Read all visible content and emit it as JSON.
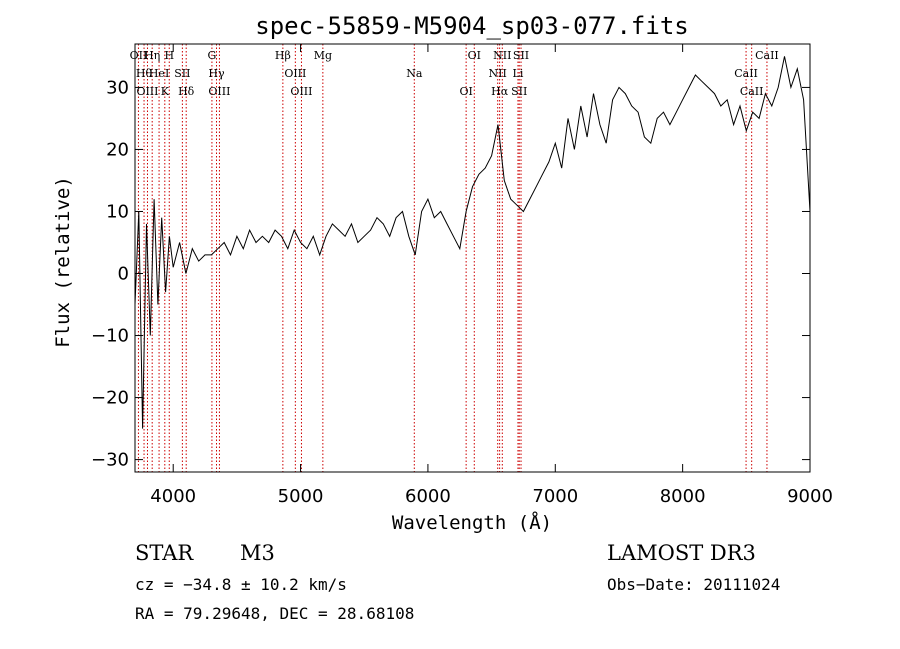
{
  "chart_data": {
    "type": "line",
    "title": "spec-55859-M5904_sp03-077.fits",
    "xlabel": "Wavelength (Å)",
    "ylabel": "Flux (relative)",
    "xlim": [
      3700,
      9000
    ],
    "ylim": [
      -32,
      37
    ],
    "xticks": [
      4000,
      5000,
      6000,
      7000,
      8000,
      9000
    ],
    "yticks": [
      -30,
      -20,
      -10,
      0,
      10,
      20,
      30
    ],
    "series": [
      {
        "name": "spectrum",
        "x": [
          3700,
          3730,
          3760,
          3790,
          3820,
          3850,
          3880,
          3910,
          3940,
          3970,
          4000,
          4050,
          4100,
          4150,
          4200,
          4250,
          4300,
          4350,
          4400,
          4450,
          4500,
          4550,
          4600,
          4650,
          4700,
          4750,
          4800,
          4850,
          4900,
          4950,
          5000,
          5050,
          5100,
          5150,
          5200,
          5250,
          5300,
          5350,
          5400,
          5450,
          5500,
          5550,
          5600,
          5650,
          5700,
          5750,
          5800,
          5850,
          5900,
          5950,
          6000,
          6050,
          6100,
          6150,
          6200,
          6250,
          6300,
          6350,
          6400,
          6450,
          6500,
          6550,
          6600,
          6650,
          6700,
          6750,
          6800,
          6850,
          6900,
          6950,
          7000,
          7050,
          7100,
          7150,
          7200,
          7250,
          7300,
          7350,
          7400,
          7450,
          7500,
          7550,
          7600,
          7650,
          7700,
          7750,
          7800,
          7850,
          7900,
          7950,
          8000,
          8050,
          8100,
          8150,
          8200,
          8250,
          8300,
          8350,
          8400,
          8450,
          8500,
          8550,
          8600,
          8650,
          8700,
          8750,
          8800,
          8850,
          8900,
          8950,
          9000
        ],
        "y": [
          -5,
          10,
          -25,
          8,
          -10,
          12,
          -5,
          9,
          -3,
          6,
          1,
          5,
          0,
          4,
          2,
          3,
          3,
          4,
          5,
          3,
          6,
          4,
          7,
          5,
          6,
          5,
          7,
          6,
          4,
          7,
          5,
          4,
          6,
          3,
          6,
          8,
          7,
          6,
          8,
          5,
          6,
          7,
          9,
          8,
          6,
          9,
          10,
          6,
          3,
          10,
          12,
          9,
          10,
          8,
          6,
          4,
          10,
          14,
          16,
          17,
          19,
          24,
          15,
          12,
          11,
          10,
          12,
          14,
          16,
          18,
          21,
          17,
          25,
          20,
          27,
          22,
          29,
          24,
          21,
          28,
          30,
          29,
          27,
          26,
          22,
          21,
          25,
          26,
          24,
          26,
          28,
          30,
          32,
          31,
          30,
          29,
          27,
          28,
          24,
          27,
          23,
          26,
          25,
          29,
          27,
          30,
          35,
          30,
          33,
          28,
          10
        ]
      }
    ],
    "lines": [
      {
        "wl": 3727,
        "label": "OII"
      },
      {
        "wl": 3771,
        "label": "Hθ"
      },
      {
        "wl": 3798,
        "label": "OIII"
      },
      {
        "wl": 3835,
        "label": "Hη"
      },
      {
        "wl": 3889,
        "label": "HeI"
      },
      {
        "wl": 3934,
        "label": "K"
      },
      {
        "wl": 3969,
        "label": "H"
      },
      {
        "wl": 4072,
        "label": "SII"
      },
      {
        "wl": 4102,
        "label": "Hδ"
      },
      {
        "wl": 4304,
        "label": "G"
      },
      {
        "wl": 4340,
        "label": "Hγ"
      },
      {
        "wl": 4363,
        "label": "OIII"
      },
      {
        "wl": 4861,
        "label": "Hβ"
      },
      {
        "wl": 4959,
        "label": "OIII"
      },
      {
        "wl": 5007,
        "label": "OIII"
      },
      {
        "wl": 5175,
        "label": "Mg"
      },
      {
        "wl": 5893,
        "label": "Na"
      },
      {
        "wl": 6300,
        "label": "OI"
      },
      {
        "wl": 6364,
        "label": "OI"
      },
      {
        "wl": 6548,
        "label": "NII"
      },
      {
        "wl": 6563,
        "label": "Hα"
      },
      {
        "wl": 6584,
        "label": "NII"
      },
      {
        "wl": 6707,
        "label": "Li"
      },
      {
        "wl": 6717,
        "label": "SII"
      },
      {
        "wl": 6731,
        "label": "SII"
      },
      {
        "wl": 8498,
        "label": "CaII"
      },
      {
        "wl": 8542,
        "label": "CaII"
      },
      {
        "wl": 8662,
        "label": "CaII"
      }
    ]
  },
  "info": {
    "class": "STAR",
    "subclass": "M3",
    "survey": "LAMOST DR3",
    "cz": "cz = −34.8 ± 10.2 km/s",
    "obs_date": "Obs−Date: 20111024",
    "coords": "RA =  79.29648, DEC =  28.68108"
  },
  "colors": {
    "line_markers": "#cc0000",
    "spectrum": "#000000"
  }
}
